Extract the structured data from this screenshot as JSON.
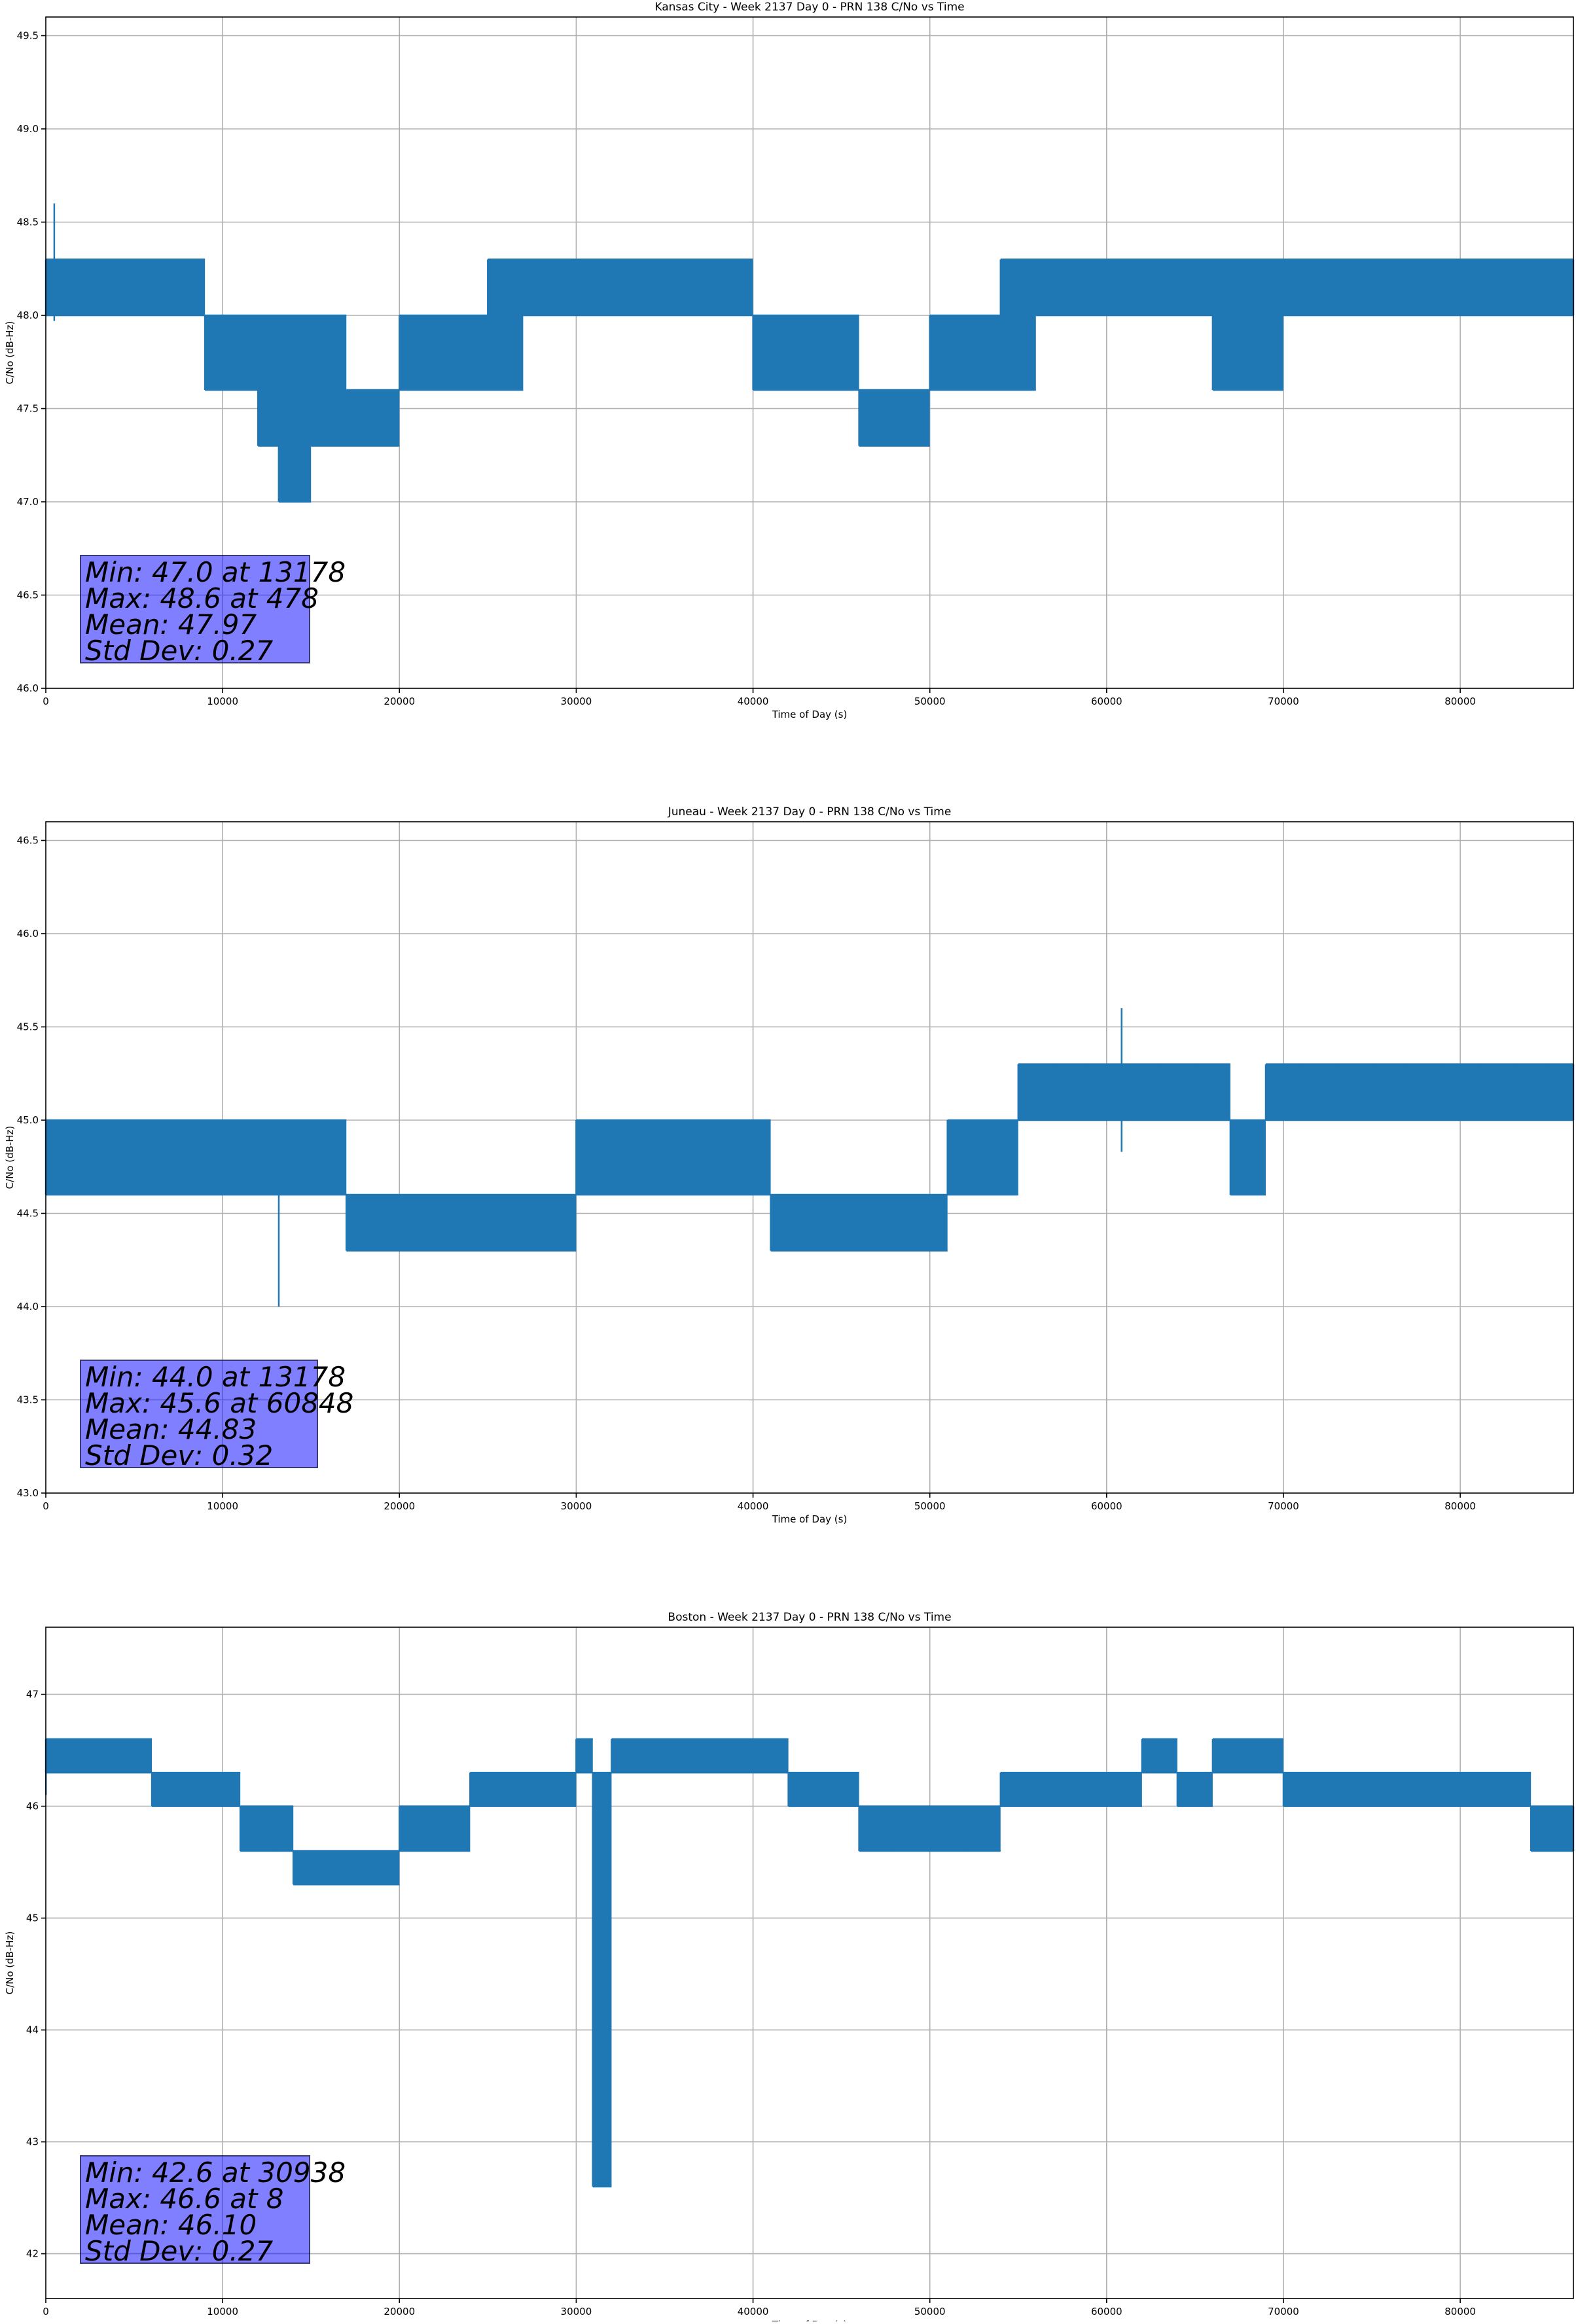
{
  "figure": {
    "panels": [
      {
        "title": "Kansas City - Week 2137 Day 0 - PRN 138 C/No vs Time",
        "xlabel": "Time of Day (s)",
        "ylabel": "C/No (dB-Hz)",
        "stats": [
          "Min: 47.0 at 13178",
          "Max: 48.6 at 478",
          "Mean: 47.97",
          "Std Dev: 0.27"
        ]
      },
      {
        "title": "Juneau - Week 2137 Day 0 - PRN 138 C/No vs Time",
        "xlabel": "Time of Day (s)",
        "ylabel": "C/No (dB-Hz)",
        "stats": [
          "Min: 44.0 at 13178",
          "Max: 45.6 at 60848",
          "Mean: 44.83",
          "Std Dev: 0.32"
        ]
      },
      {
        "title": "Boston - Week 2137 Day 0 - PRN 138 C/No vs Time",
        "xlabel": "Time of Day (s)",
        "ylabel": "C/No (dB-Hz)",
        "stats": [
          "Min: 42.6 at 30938",
          "Max: 46.6 at 8",
          "Mean: 46.10",
          "Std Dev: 0.27"
        ]
      }
    ]
  },
  "chart_data": [
    {
      "type": "line",
      "title": "Kansas City - Week 2137 Day 0 - PRN 138 C/No vs Time",
      "xlabel": "Time of Day (s)",
      "ylabel": "C/No (dB-Hz)",
      "xlim": [
        0,
        86400
      ],
      "ylim": [
        46.0,
        49.6
      ],
      "xticks": [
        0,
        10000,
        20000,
        30000,
        40000,
        50000,
        60000,
        70000,
        80000
      ],
      "xtick_labels": [
        "0",
        "10000",
        "20000",
        "30000",
        "40000",
        "50000",
        "60000",
        "70000",
        "80000"
      ],
      "yticks": [
        46.0,
        46.5,
        47.0,
        47.5,
        48.0,
        48.5,
        49.0,
        49.5
      ],
      "ytick_labels": [
        "46.0",
        "46.5",
        "47.0",
        "47.5",
        "48.0",
        "48.5",
        "49.0",
        "49.5"
      ],
      "grid": true,
      "color": "#1f77b4",
      "min": {
        "value": 47.0,
        "x": 13178
      },
      "max": {
        "value": 48.6,
        "x": 478
      },
      "mean": 47.97,
      "std": 0.27,
      "series": [
        {
          "values": [
            [
              0,
              48.0,
              48.3
            ],
            [
              2000,
              48.0,
              48.3
            ],
            [
              4000,
              48.0,
              48.3
            ],
            [
              6000,
              48.0,
              48.3
            ],
            [
              8000,
              48.0,
              48.3
            ],
            [
              9000,
              47.6,
              48.0
            ],
            [
              11000,
              47.6,
              48.0
            ],
            [
              12000,
              47.3,
              48.0
            ],
            [
              13178,
              47.0,
              48.0
            ],
            [
              15000,
              47.3,
              48.0
            ],
            [
              17000,
              47.3,
              47.6
            ],
            [
              19000,
              47.3,
              47.6
            ],
            [
              20000,
              47.6,
              48.0
            ],
            [
              22000,
              47.6,
              48.0
            ],
            [
              24000,
              47.6,
              48.0
            ],
            [
              25000,
              47.6,
              48.3
            ],
            [
              27000,
              48.0,
              48.3
            ],
            [
              29000,
              48.0,
              48.3
            ],
            [
              31000,
              48.0,
              48.3
            ],
            [
              33000,
              48.0,
              48.3
            ],
            [
              35000,
              48.0,
              48.3
            ],
            [
              37000,
              48.0,
              48.3
            ],
            [
              39000,
              48.0,
              48.3
            ],
            [
              40000,
              47.6,
              48.0
            ],
            [
              42000,
              47.6,
              48.0
            ],
            [
              44000,
              47.6,
              48.0
            ],
            [
              46000,
              47.3,
              47.6
            ],
            [
              48000,
              47.3,
              47.6
            ],
            [
              50000,
              47.6,
              48.0
            ],
            [
              52000,
              47.6,
              48.0
            ],
            [
              54000,
              47.6,
              48.3
            ],
            [
              56000,
              48.0,
              48.3
            ],
            [
              58000,
              48.0,
              48.3
            ],
            [
              60000,
              48.0,
              48.3
            ],
            [
              62000,
              48.0,
              48.3
            ],
            [
              64000,
              48.0,
              48.3
            ],
            [
              66000,
              47.6,
              48.3
            ],
            [
              68000,
              47.6,
              48.3
            ],
            [
              70000,
              48.0,
              48.3
            ],
            [
              72000,
              48.0,
              48.3
            ],
            [
              74000,
              48.0,
              48.3
            ],
            [
              76000,
              48.0,
              48.3
            ],
            [
              78000,
              48.0,
              48.3
            ],
            [
              80000,
              48.0,
              48.3
            ],
            [
              82000,
              48.0,
              48.3
            ],
            [
              84000,
              48.0,
              48.3
            ],
            [
              86400,
              48.0,
              48.3
            ]
          ]
        }
      ]
    },
    {
      "type": "line",
      "title": "Juneau - Week 2137 Day 0 - PRN 138 C/No vs Time",
      "xlabel": "Time of Day (s)",
      "ylabel": "C/No (dB-Hz)",
      "xlim": [
        0,
        86400
      ],
      "ylim": [
        43.0,
        46.6
      ],
      "xticks": [
        0,
        10000,
        20000,
        30000,
        40000,
        50000,
        60000,
        70000,
        80000
      ],
      "xtick_labels": [
        "0",
        "10000",
        "20000",
        "30000",
        "40000",
        "50000",
        "60000",
        "70000",
        "80000"
      ],
      "yticks": [
        43.0,
        43.5,
        44.0,
        44.5,
        45.0,
        45.5,
        46.0,
        46.5
      ],
      "ytick_labels": [
        "43.0",
        "43.5",
        "44.0",
        "44.5",
        "45.0",
        "45.5",
        "46.0",
        "46.5"
      ],
      "grid": true,
      "color": "#1f77b4",
      "min": {
        "value": 44.0,
        "x": 13178
      },
      "max": {
        "value": 45.6,
        "x": 60848
      },
      "mean": 44.83,
      "std": 0.32,
      "series": [
        {
          "values": [
            [
              0,
              44.6,
              45.0
            ],
            [
              2000,
              44.6,
              45.0
            ],
            [
              4000,
              44.6,
              45.0
            ],
            [
              6000,
              44.6,
              45.0
            ],
            [
              8000,
              44.6,
              45.0
            ],
            [
              10000,
              44.6,
              45.0
            ],
            [
              12000,
              44.6,
              45.0
            ],
            [
              14000,
              44.6,
              45.0
            ],
            [
              16000,
              44.6,
              45.0
            ],
            [
              17000,
              44.3,
              44.6
            ],
            [
              19000,
              44.3,
              44.6
            ],
            [
              21000,
              44.3,
              44.6
            ],
            [
              23000,
              44.3,
              44.6
            ],
            [
              25000,
              44.3,
              44.6
            ],
            [
              27000,
              44.3,
              44.6
            ],
            [
              29000,
              44.3,
              44.6
            ],
            [
              30000,
              44.6,
              45.0
            ],
            [
              32000,
              44.6,
              45.0
            ],
            [
              34000,
              44.6,
              45.0
            ],
            [
              36000,
              44.6,
              45.0
            ],
            [
              38000,
              44.6,
              45.0
            ],
            [
              40000,
              44.6,
              45.0
            ],
            [
              41000,
              44.3,
              44.6
            ],
            [
              43000,
              44.3,
              44.6
            ],
            [
              45000,
              44.3,
              44.6
            ],
            [
              47000,
              44.3,
              44.6
            ],
            [
              49000,
              44.3,
              44.6
            ],
            [
              51000,
              44.6,
              45.0
            ],
            [
              53000,
              44.6,
              45.0
            ],
            [
              55000,
              45.0,
              45.3
            ],
            [
              57000,
              45.0,
              45.3
            ],
            [
              59000,
              45.0,
              45.3
            ],
            [
              61000,
              45.0,
              45.3
            ],
            [
              63000,
              45.0,
              45.3
            ],
            [
              65000,
              45.0,
              45.3
            ],
            [
              67000,
              44.6,
              45.0
            ],
            [
              69000,
              45.0,
              45.3
            ],
            [
              71000,
              45.0,
              45.3
            ],
            [
              73000,
              45.0,
              45.3
            ],
            [
              75000,
              45.0,
              45.3
            ],
            [
              77000,
              45.0,
              45.3
            ],
            [
              79000,
              45.0,
              45.3
            ],
            [
              81000,
              45.0,
              45.3
            ],
            [
              83000,
              45.0,
              45.3
            ],
            [
              85000,
              45.0,
              45.3
            ],
            [
              86400,
              45.0,
              45.3
            ]
          ]
        }
      ]
    },
    {
      "type": "line",
      "title": "Boston - Week 2137 Day 0 - PRN 138 C/No vs Time",
      "xlabel": "Time of Day (s)",
      "ylabel": "C/No (dB-Hz)",
      "xlim": [
        0,
        86400
      ],
      "ylim": [
        41.6,
        47.6
      ],
      "xticks": [
        0,
        10000,
        20000,
        30000,
        40000,
        50000,
        60000,
        70000,
        80000
      ],
      "xtick_labels": [
        "0",
        "10000",
        "20000",
        "30000",
        "40000",
        "50000",
        "60000",
        "70000",
        "80000"
      ],
      "yticks": [
        42,
        43,
        44,
        45,
        46,
        47
      ],
      "ytick_labels": [
        "42",
        "43",
        "44",
        "45",
        "46",
        "47"
      ],
      "grid": true,
      "color": "#1f77b4",
      "min": {
        "value": 42.6,
        "x": 30938
      },
      "max": {
        "value": 46.6,
        "x": 8
      },
      "mean": 46.1,
      "std": 0.27,
      "series": [
        {
          "values": [
            [
              0,
              46.3,
              46.6
            ],
            [
              2000,
              46.3,
              46.6
            ],
            [
              4000,
              46.3,
              46.6
            ],
            [
              6000,
              46.0,
              46.3
            ],
            [
              8000,
              46.0,
              46.3
            ],
            [
              10000,
              46.0,
              46.3
            ],
            [
              11000,
              45.6,
              46.0
            ],
            [
              13000,
              45.6,
              46.0
            ],
            [
              14000,
              45.3,
              45.6
            ],
            [
              16000,
              45.3,
              45.6
            ],
            [
              18000,
              45.3,
              45.6
            ],
            [
              20000,
              45.6,
              46.0
            ],
            [
              22000,
              45.6,
              46.0
            ],
            [
              24000,
              46.0,
              46.3
            ],
            [
              26000,
              46.0,
              46.3
            ],
            [
              28000,
              46.0,
              46.3
            ],
            [
              30000,
              46.3,
              46.6
            ],
            [
              30938,
              42.6,
              46.3
            ],
            [
              32000,
              46.3,
              46.6
            ],
            [
              34000,
              46.3,
              46.6
            ],
            [
              36000,
              46.3,
              46.6
            ],
            [
              38000,
              46.3,
              46.6
            ],
            [
              40000,
              46.3,
              46.6
            ],
            [
              42000,
              46.0,
              46.3
            ],
            [
              44000,
              46.0,
              46.3
            ],
            [
              46000,
              45.6,
              46.0
            ],
            [
              48000,
              45.6,
              46.0
            ],
            [
              50000,
              45.6,
              46.0
            ],
            [
              52000,
              45.6,
              46.0
            ],
            [
              54000,
              46.0,
              46.3
            ],
            [
              56000,
              46.0,
              46.3
            ],
            [
              58000,
              46.0,
              46.3
            ],
            [
              60000,
              46.0,
              46.3
            ],
            [
              62000,
              46.3,
              46.6
            ],
            [
              64000,
              46.0,
              46.3
            ],
            [
              66000,
              46.3,
              46.6
            ],
            [
              68000,
              46.3,
              46.6
            ],
            [
              70000,
              46.0,
              46.3
            ],
            [
              72000,
              46.0,
              46.3
            ],
            [
              74000,
              46.0,
              46.3
            ],
            [
              76000,
              46.0,
              46.3
            ],
            [
              78000,
              46.0,
              46.3
            ],
            [
              80000,
              46.0,
              46.3
            ],
            [
              82000,
              46.0,
              46.3
            ],
            [
              84000,
              45.6,
              46.0
            ],
            [
              86400,
              45.6,
              46.0
            ]
          ]
        }
      ]
    }
  ]
}
